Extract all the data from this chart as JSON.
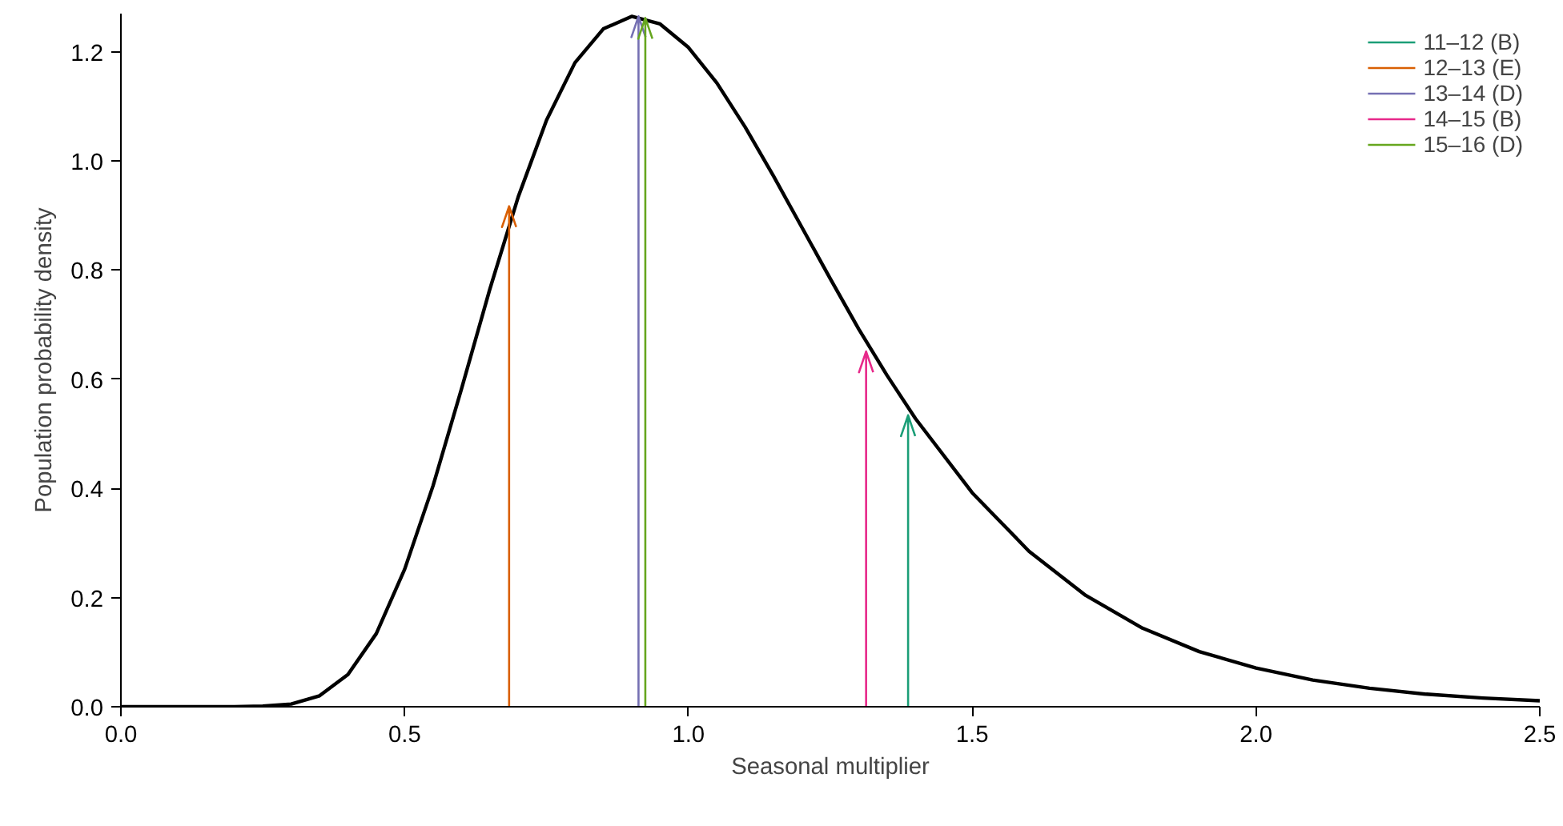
{
  "chart_data": {
    "type": "line",
    "xlabel": "Seasonal multiplier",
    "ylabel": "Population probability density",
    "xlim": [
      0,
      2.5
    ],
    "ylim": [
      0,
      1.27
    ],
    "xticks": [
      {
        "value": 0,
        "label": "0.0"
      },
      0.5,
      {
        "value": 1,
        "label": "1.0"
      },
      1.5,
      {
        "value": 2,
        "label": "2.0"
      },
      2.5
    ],
    "yticks": [
      {
        "value": 0,
        "label": "0.0"
      },
      0.2,
      0.4,
      0.6,
      0.8,
      {
        "value": 1,
        "label": "1.0"
      },
      1.2
    ],
    "grid": false,
    "legend": "top right",
    "marker": "none",
    "line_style": "solid",
    "series": [
      {
        "color": "#000000",
        "x": [
          0,
          0.1,
          0.2,
          0.25,
          0.3,
          0.35,
          0.4,
          0.45,
          0.5,
          0.55,
          0.6,
          0.65,
          0.7,
          0.75,
          0.8,
          0.85,
          0.9,
          0.95,
          1.0,
          1.05,
          1.1,
          1.15,
          1.2,
          1.25,
          1.3,
          1.35,
          1.4,
          1.5,
          1.6,
          1.7,
          1.8,
          1.9,
          2.0,
          2.1,
          2.2,
          2.3,
          2.4,
          2.5
        ],
        "values": [
          0,
          0,
          0,
          0.001,
          0.005,
          0.02,
          0.059,
          0.134,
          0.252,
          0.405,
          0.582,
          0.765,
          0.934,
          1.075,
          1.18,
          1.242,
          1.265,
          1.251,
          1.208,
          1.143,
          1.062,
          0.972,
          0.878,
          0.784,
          0.692,
          0.607,
          0.528,
          0.392,
          0.285,
          0.204,
          0.144,
          0.101,
          0.071,
          0.049,
          0.034,
          0.023,
          0.016,
          0.011
        ]
      },
      {
        "type": "line",
        "name": "11–12 (B)",
        "color": "#1b9e77",
        "x": [
          1.387,
          1.387
        ],
        "values": [
          0,
          0.534
        ]
      },
      {
        "type": "line",
        "name": "12–13 (E)",
        "color": "#d95f02",
        "x": [
          0.684,
          0.684
        ],
        "values": [
          0,
          0.917
        ]
      },
      {
        "type": "line",
        "name": "13–14 (D)",
        "color": "#7570b3",
        "x": [
          0.912,
          0.912
        ],
        "values": [
          0,
          1.265
        ]
      },
      {
        "type": "line",
        "name": "14–15 (B)",
        "color": "#e7298a",
        "x": [
          1.313,
          1.313
        ],
        "values": [
          0,
          0.651
        ]
      },
      {
        "type": "line",
        "name": "15–16 (D)",
        "color": "#66a61e",
        "x": [
          0.924,
          0.924
        ],
        "values": [
          0,
          1.262
        ]
      }
    ]
  }
}
